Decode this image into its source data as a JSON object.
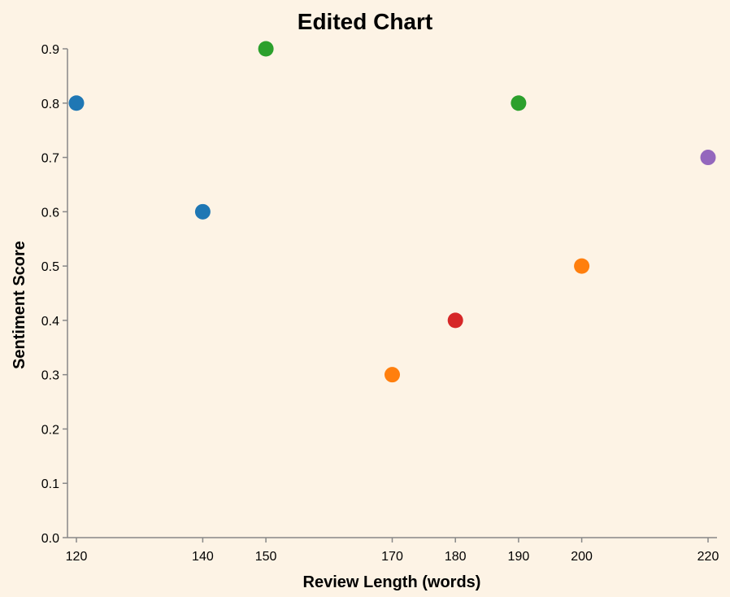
{
  "chart_data": {
    "type": "scatter",
    "title": "Edited Chart",
    "xlabel": "Review Length (words)",
    "ylabel": "Sentiment Score",
    "xlim": [
      120,
      220
    ],
    "ylim": [
      0,
      0.9
    ],
    "grid": false,
    "x_ticks": [
      120,
      140,
      150,
      170,
      180,
      190,
      200,
      220
    ],
    "y_ticks": [
      0.0,
      0.1,
      0.2,
      0.3,
      0.4,
      0.5,
      0.6,
      0.7,
      0.8,
      0.9
    ],
    "x_tick_labels": [
      "120",
      "140",
      "150",
      "170",
      "180",
      "190",
      "200",
      "220"
    ],
    "y_tick_labels": [
      "0.0",
      "0.1",
      "0.2",
      "0.3",
      "0.4",
      "0.5",
      "0.6",
      "0.7",
      "0.8",
      "0.9"
    ],
    "points": [
      {
        "x": 120,
        "y": 0.8,
        "color": "#1f77b4"
      },
      {
        "x": 140,
        "y": 0.6,
        "color": "#1f77b4"
      },
      {
        "x": 150,
        "y": 0.9,
        "color": "#2ca02c"
      },
      {
        "x": 170,
        "y": 0.3,
        "color": "#ff7f0e"
      },
      {
        "x": 180,
        "y": 0.4,
        "color": "#d62728"
      },
      {
        "x": 190,
        "y": 0.8,
        "color": "#2ca02c"
      },
      {
        "x": 200,
        "y": 0.5,
        "color": "#ff7f0e"
      },
      {
        "x": 220,
        "y": 0.7,
        "color": "#9467bd"
      }
    ]
  }
}
